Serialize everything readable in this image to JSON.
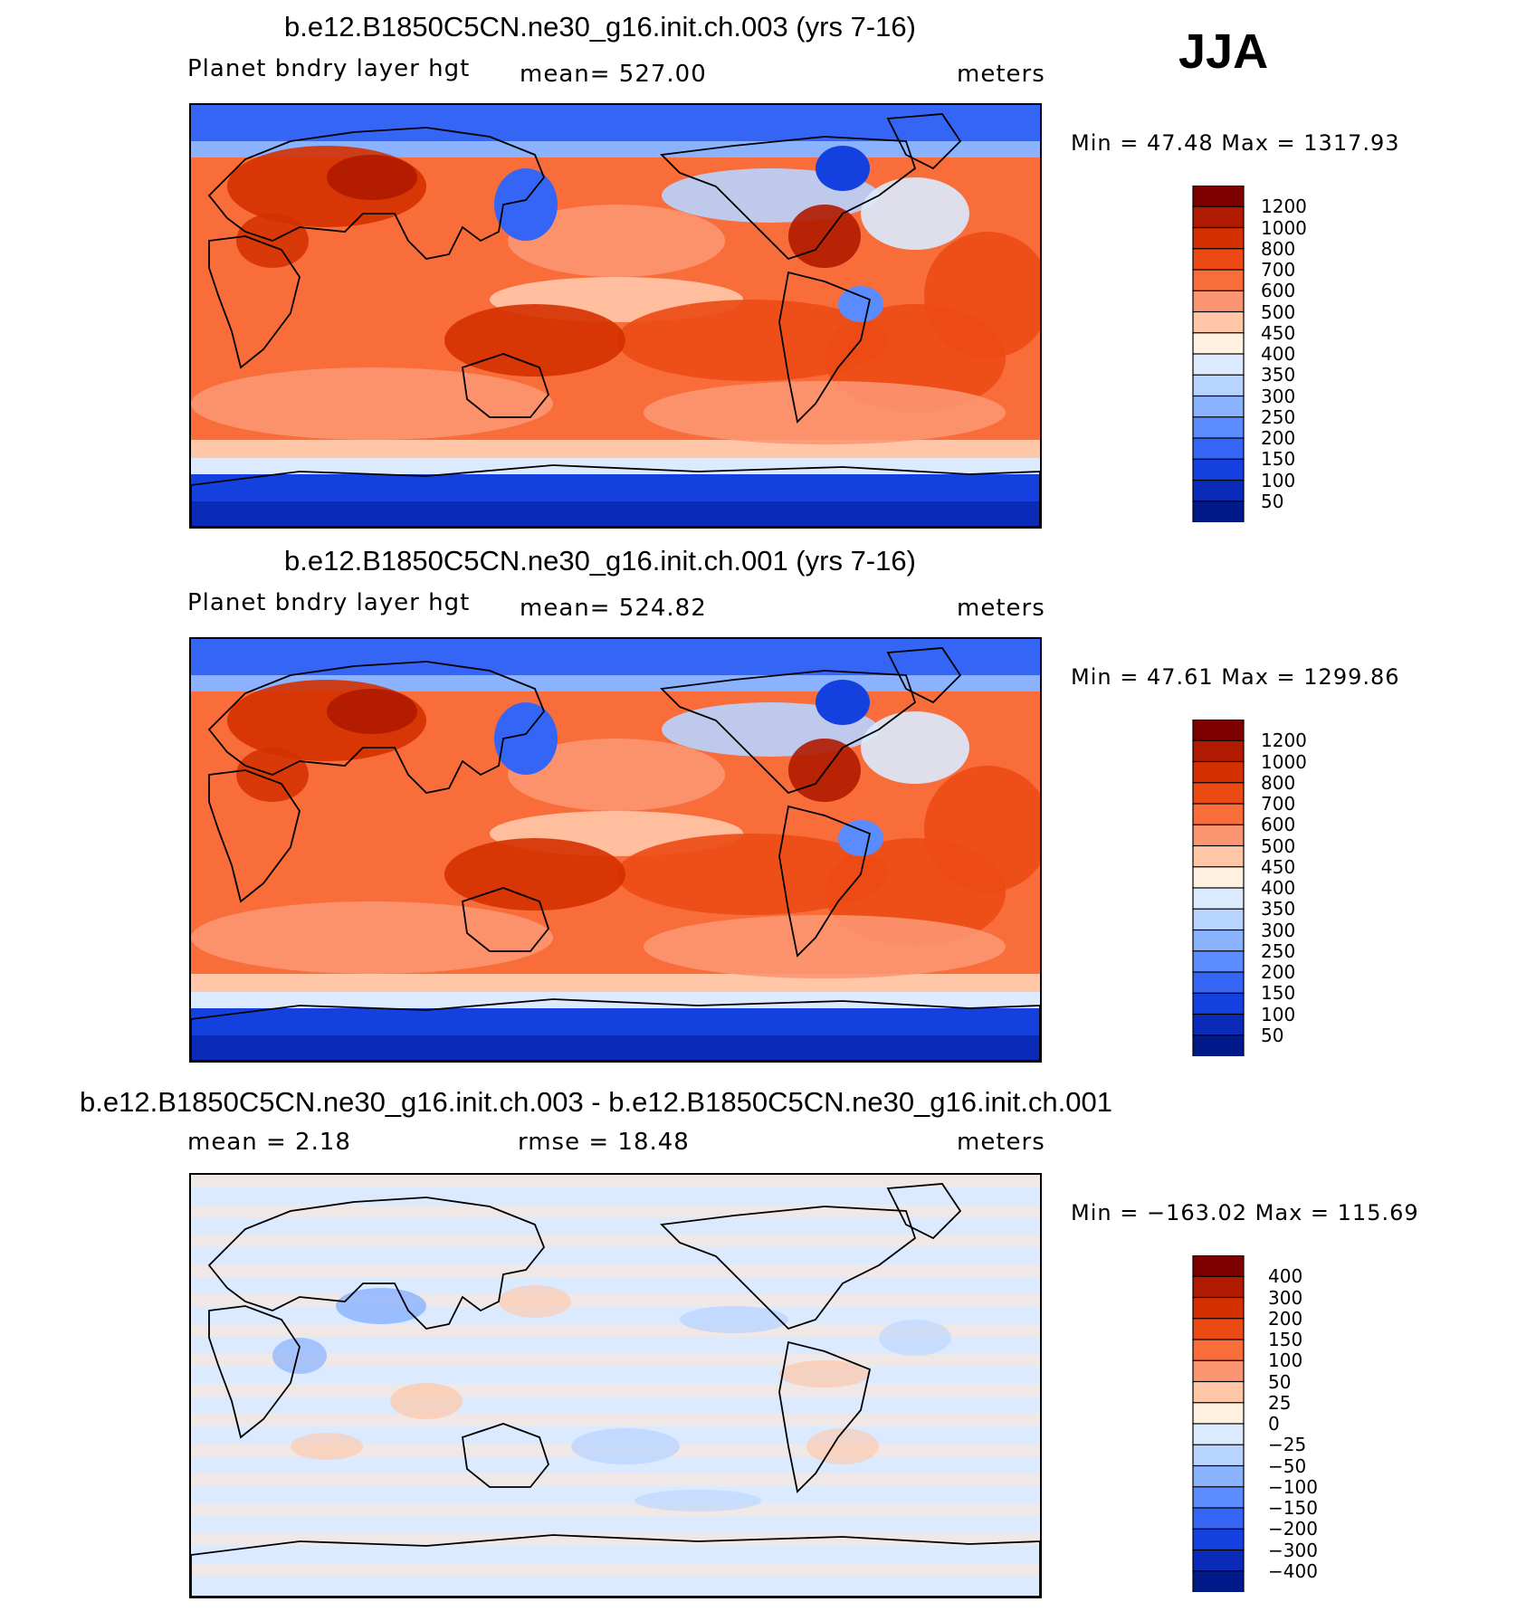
{
  "season": "JJA",
  "units": "meters",
  "panels": [
    {
      "title": "b.e12.B1850C5CN.ne30_g16.init.ch.003 (yrs 7-16)",
      "variable": "Planet bndry layer hgt",
      "stat": "mean=  527.00",
      "minmax": "Min =   47.48  Max  =  1317.93",
      "colorbar_labels": [
        "1200",
        "1000",
        "800",
        "700",
        "600",
        "500",
        "450",
        "400",
        "350",
        "300",
        "250",
        "200",
        "150",
        "100",
        "50"
      ]
    },
    {
      "title": "b.e12.B1850C5CN.ne30_g16.init.ch.001 (yrs 7-16)",
      "variable": "Planet bndry layer hgt",
      "stat": "mean=  524.82",
      "minmax": "Min =   47.61  Max  =  1299.86",
      "colorbar_labels": [
        "1200",
        "1000",
        "800",
        "700",
        "600",
        "500",
        "450",
        "400",
        "350",
        "300",
        "250",
        "200",
        "150",
        "100",
        "50"
      ]
    },
    {
      "title": "b.e12.B1850C5CN.ne30_g16.init.ch.003 - b.e12.B1850C5CN.ne30_g16.init.ch.001",
      "stat_left": "mean =    2.18",
      "stat_mid": "rmse =   18.48",
      "minmax": "Min = −163.02  Max  =  115.69",
      "colorbar_labels": [
        "400",
        "300",
        "200",
        "150",
        "100",
        "50",
        "25",
        "0",
        "−25",
        "−50",
        "−100",
        "−150",
        "−200",
        "−300",
        "−400"
      ]
    }
  ],
  "colors": {
    "palette": [
      "#7f0000",
      "#b01a00",
      "#d43000",
      "#ec4a14",
      "#f86d3a",
      "#fc9672",
      "#ffc6a8",
      "#fff0e0",
      "#dceaff",
      "#b7d3ff",
      "#8ab2ff",
      "#5a8cff",
      "#3565f5",
      "#1440e0",
      "#0a2ab8",
      "#001a8a"
    ]
  }
}
